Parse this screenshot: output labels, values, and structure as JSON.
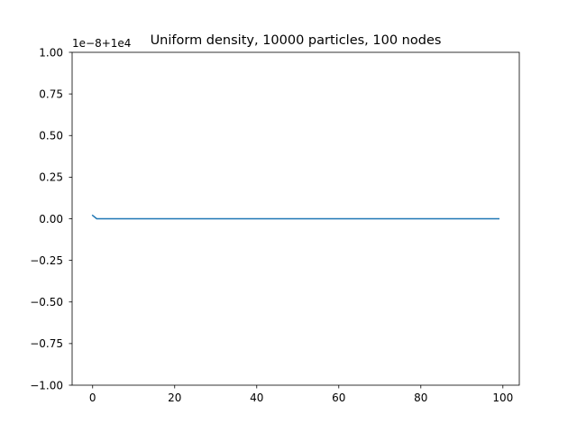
{
  "chart_data": {
    "type": "line",
    "title": "Uniform density, 10000 particles, 100 nodes",
    "xlabel": "",
    "ylabel": "",
    "offset_text": "1e−8+1e4",
    "xlim": [
      -5,
      104
    ],
    "ylim": [
      -1.0,
      1.0
    ],
    "x_ticks": [
      0,
      20,
      40,
      60,
      80,
      100
    ],
    "y_ticks": [
      -1.0,
      -0.75,
      -0.5,
      -0.25,
      0.0,
      0.25,
      0.5,
      0.75,
      1.0
    ],
    "x_tick_labels": [
      "0",
      "20",
      "40",
      "60",
      "80",
      "100"
    ],
    "y_tick_labels": [
      "−1.00",
      "−0.75",
      "−0.50",
      "−0.25",
      "0.00",
      "0.25",
      "0.50",
      "0.75",
      "1.00"
    ],
    "grid": false,
    "series": [
      {
        "color": "#1f77b4",
        "x": [
          0,
          1,
          2,
          99
        ],
        "y": [
          0.02,
          0.0,
          0.0,
          0.0
        ]
      }
    ]
  }
}
